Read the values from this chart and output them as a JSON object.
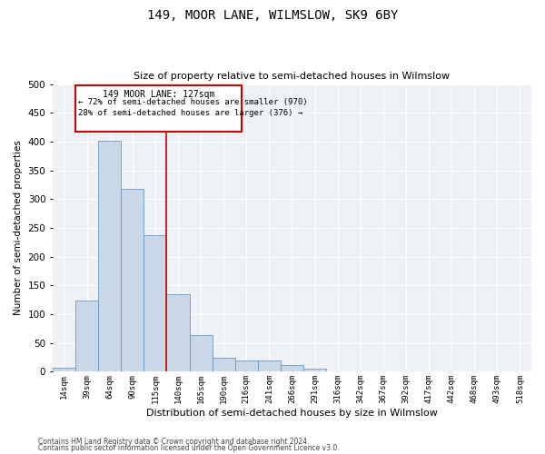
{
  "title1": "149, MOOR LANE, WILMSLOW, SK9 6BY",
  "title2": "Size of property relative to semi-detached houses in Wilmslow",
  "xlabel": "Distribution of semi-detached houses by size in Wilmslow",
  "ylabel": "Number of semi-detached properties",
  "footer1": "Contains HM Land Registry data © Crown copyright and database right 2024.",
  "footer2": "Contains public sector information licensed under the Open Government Licence v3.0.",
  "bins": [
    "14sqm",
    "39sqm",
    "64sqm",
    "90sqm",
    "115sqm",
    "140sqm",
    "165sqm",
    "190sqm",
    "216sqm",
    "241sqm",
    "266sqm",
    "291sqm",
    "316sqm",
    "342sqm",
    "367sqm",
    "392sqm",
    "417sqm",
    "442sqm",
    "468sqm",
    "493sqm",
    "518sqm"
  ],
  "values": [
    7,
    123,
    401,
    318,
    238,
    135,
    64,
    25,
    20,
    19,
    11,
    6,
    1,
    0,
    0,
    0,
    1,
    0,
    0,
    1,
    0
  ],
  "bar_color": "#c8d8e8",
  "bar_edge_color": "#5a8ab5",
  "vline_x": 4.5,
  "annotation_title": "149 MOOR LANE: 127sqm",
  "annotation_line1": "← 72% of semi-detached houses are smaller (970)",
  "annotation_line2": "28% of semi-detached houses are larger (376) →",
  "annotation_color": "#cc0000",
  "vline_color": "#cc0000",
  "background_color": "#eef2f7",
  "grid_color": "#ffffff",
  "ylim": [
    0,
    500
  ],
  "yticks": [
    0,
    50,
    100,
    150,
    200,
    250,
    300,
    350,
    400,
    450,
    500
  ]
}
